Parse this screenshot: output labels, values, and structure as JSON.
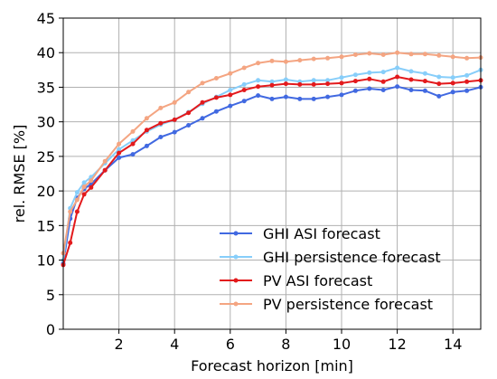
{
  "chart_data": {
    "type": "line",
    "xlabel": "Forecast horizon [min]",
    "ylabel": "rel. RMSE [%]",
    "xlim": [
      0.0,
      15.0
    ],
    "ylim": [
      0,
      45
    ],
    "x_ticks": [
      2,
      4,
      6,
      8,
      10,
      12,
      14
    ],
    "y_ticks": [
      0,
      5,
      10,
      15,
      20,
      25,
      30,
      35,
      40,
      45
    ],
    "x_tick_labels": [
      "2",
      "4",
      "6",
      "8",
      "10",
      "12",
      "14"
    ],
    "y_tick_labels": [
      "0",
      "5",
      "10",
      "15",
      "20",
      "25",
      "30",
      "35",
      "40",
      "45"
    ],
    "grid": true,
    "legend_position": "lower right",
    "x": [
      0.0,
      0.25,
      0.5,
      0.75,
      1.0,
      1.5,
      2.0,
      2.5,
      3.0,
      3.5,
      4.0,
      4.5,
      5.0,
      5.5,
      6.0,
      6.5,
      7.0,
      7.5,
      8.0,
      8.5,
      9.0,
      9.5,
      10.0,
      10.5,
      11.0,
      11.5,
      12.0,
      12.5,
      13.0,
      13.5,
      14.0,
      14.5,
      15.0
    ],
    "series": [
      {
        "name": "GHI ASI forecast",
        "color": "#4169e1",
        "values": [
          9.5,
          16.0,
          19.0,
          20.3,
          21.0,
          23.0,
          24.8,
          25.3,
          26.5,
          27.8,
          28.5,
          29.5,
          30.5,
          31.5,
          32.3,
          33.0,
          33.8,
          33.3,
          33.6,
          33.3,
          33.3,
          33.6,
          33.9,
          34.5,
          34.8,
          34.6,
          35.1,
          34.6,
          34.5,
          33.7,
          34.3,
          34.5,
          35.0
        ]
      },
      {
        "name": "GHI persistence forecast",
        "color": "#87cefa",
        "values": [
          10.0,
          17.5,
          19.8,
          21.2,
          22.0,
          24.0,
          26.0,
          27.3,
          28.6,
          29.6,
          30.3,
          31.4,
          32.6,
          33.6,
          34.6,
          35.4,
          36.0,
          35.8,
          36.1,
          35.8,
          36.0,
          36.0,
          36.4,
          36.8,
          37.1,
          37.2,
          37.8,
          37.3,
          37.0,
          36.5,
          36.4,
          36.7,
          37.5
        ]
      },
      {
        "name": "PV ASI forecast",
        "color": "#e31a1c",
        "values": [
          9.3,
          12.5,
          17.0,
          19.5,
          20.5,
          23.0,
          25.5,
          26.8,
          28.8,
          29.8,
          30.3,
          31.3,
          32.8,
          33.5,
          33.9,
          34.6,
          35.1,
          35.3,
          35.5,
          35.4,
          35.4,
          35.5,
          35.6,
          35.9,
          36.2,
          35.8,
          36.5,
          36.1,
          35.9,
          35.5,
          35.6,
          35.8,
          36.0
        ]
      },
      {
        "name": "PV persistence forecast",
        "color": "#f4a582",
        "values": [
          11.0,
          17.0,
          18.7,
          20.6,
          21.5,
          24.3,
          26.8,
          28.6,
          30.5,
          32.0,
          32.8,
          34.3,
          35.6,
          36.3,
          37.0,
          37.8,
          38.5,
          38.8,
          38.7,
          38.9,
          39.1,
          39.2,
          39.4,
          39.7,
          39.9,
          39.7,
          40.0,
          39.8,
          39.8,
          39.6,
          39.4,
          39.2,
          39.3
        ]
      }
    ]
  }
}
